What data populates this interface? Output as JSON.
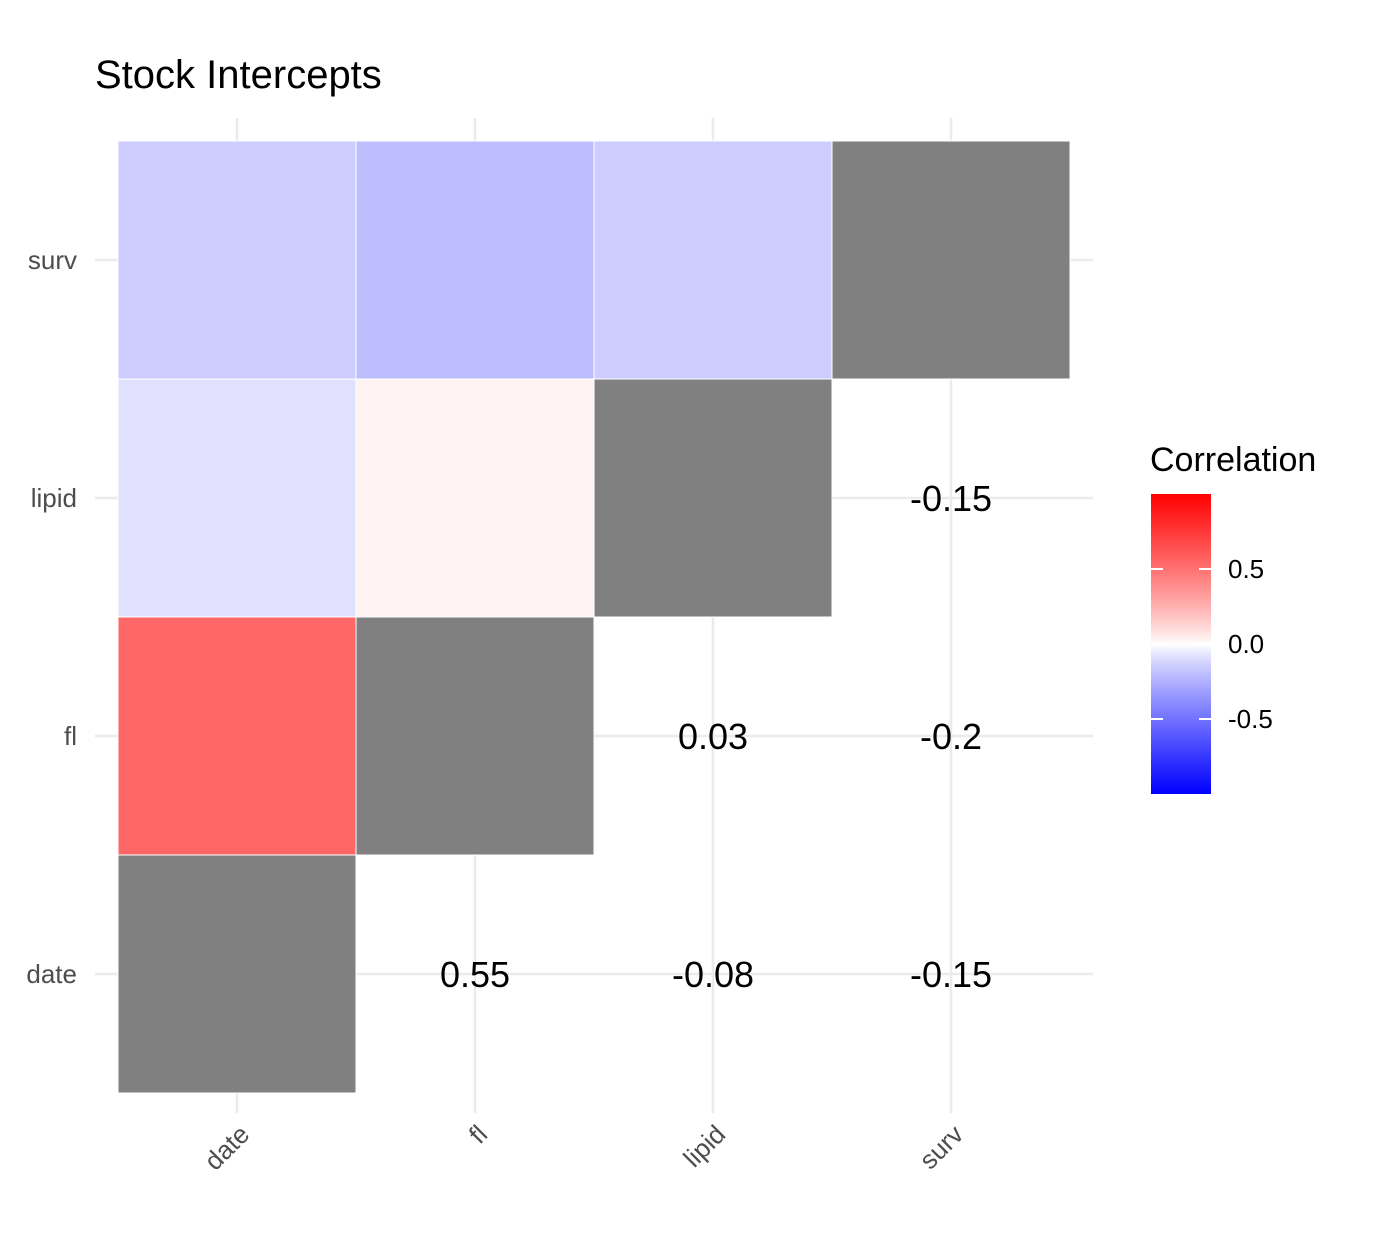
{
  "chart_data": {
    "type": "heatmap",
    "title": "Stock Intercepts",
    "xlabel": "",
    "ylabel": "",
    "x_categories": [
      "date",
      "fl",
      "lipid",
      "surv"
    ],
    "y_categories": [
      "date",
      "fl",
      "lipid",
      "surv"
    ],
    "diagonal_color": "#808080",
    "cells": [
      {
        "x": "date",
        "y": "date",
        "value": null,
        "diagonal": true
      },
      {
        "x": "date",
        "y": "fl",
        "value": 0.55
      },
      {
        "x": "date",
        "y": "lipid",
        "value": -0.08
      },
      {
        "x": "date",
        "y": "surv",
        "value": -0.15
      },
      {
        "x": "fl",
        "y": "fl",
        "value": null,
        "diagonal": true
      },
      {
        "x": "fl",
        "y": "lipid",
        "value": 0.03
      },
      {
        "x": "fl",
        "y": "surv",
        "value": -0.2
      },
      {
        "x": "lipid",
        "y": "lipid",
        "value": null,
        "diagonal": true
      },
      {
        "x": "lipid",
        "y": "surv",
        "value": -0.15
      },
      {
        "x": "surv",
        "y": "surv",
        "value": null,
        "diagonal": true
      }
    ],
    "labels": [
      {
        "x": "fl",
        "y": "date",
        "text": "0.55"
      },
      {
        "x": "lipid",
        "y": "date",
        "text": "-0.08"
      },
      {
        "x": "surv",
        "y": "date",
        "text": "-0.15"
      },
      {
        "x": "lipid",
        "y": "fl",
        "text": "0.03"
      },
      {
        "x": "surv",
        "y": "fl",
        "text": "-0.2"
      },
      {
        "x": "surv",
        "y": "lipid",
        "text": "-0.15"
      }
    ],
    "legend": {
      "title": "Correlation",
      "position": "right",
      "range": [
        -1,
        1
      ],
      "ticks": [
        0.5,
        0.0,
        -0.5
      ],
      "tick_labels": [
        "0.5",
        "0.0",
        "-0.5"
      ],
      "low_color": "#0000ff",
      "mid_color": "#ffffff",
      "high_color": "#ff0000"
    },
    "grid": true
  }
}
